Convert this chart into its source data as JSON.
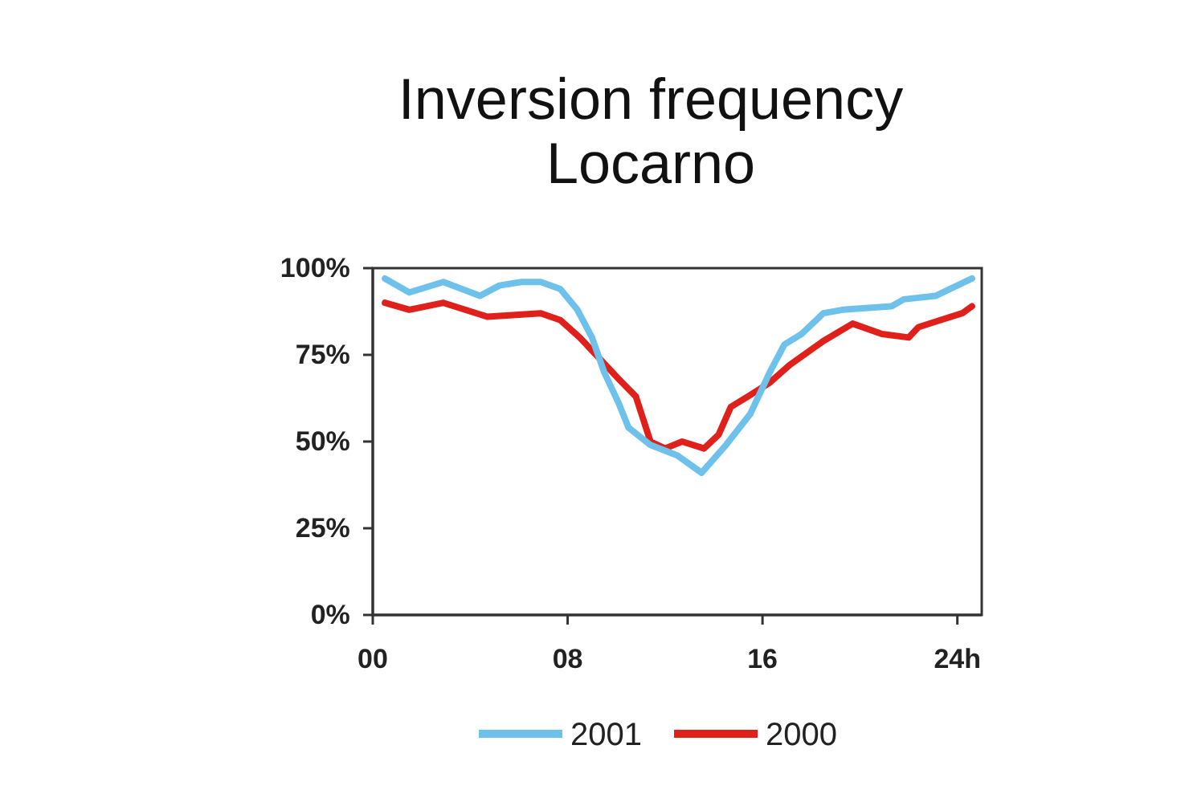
{
  "chart_data": {
    "type": "line",
    "title": "Inversion frequency\nLocarno",
    "xlim": [
      0,
      25
    ],
    "xticks": [
      {
        "value": 0,
        "label": "00"
      },
      {
        "value": 8,
        "label": "08"
      },
      {
        "value": 16,
        "label": "16"
      },
      {
        "value": 24,
        "label": "24h"
      }
    ],
    "ylim": [
      0,
      100
    ],
    "yticks": [
      {
        "value": 0,
        "label": "0%"
      },
      {
        "value": 25,
        "label": "25%"
      },
      {
        "value": 50,
        "label": "50%"
      },
      {
        "value": 75,
        "label": "75%"
      },
      {
        "value": 100,
        "label": "100%"
      }
    ],
    "grid": false,
    "legend": "bottom",
    "marker": "none",
    "line_style": "solid",
    "series": [
      {
        "name": "2001",
        "color": "#6ec1ea",
        "x": [
          0.5,
          1.5,
          2.9,
          4.4,
          5.2,
          6.1,
          6.9,
          7.7,
          8.4,
          9.0,
          9.5,
          10.1,
          10.5,
          11.4,
          12.5,
          13.5,
          14.5,
          15.5,
          16.3,
          16.9,
          17.6,
          18.5,
          19.3,
          21.3,
          21.8,
          23.1,
          24.6
        ],
        "values": [
          97,
          93,
          96,
          92,
          95,
          96,
          96,
          94,
          88,
          80,
          70,
          61,
          54,
          49,
          46,
          41,
          49,
          58,
          70,
          78,
          81,
          87,
          88,
          89,
          91,
          92,
          97
        ]
      },
      {
        "name": "2000",
        "color": "#e0201b",
        "x": [
          0.5,
          1.5,
          2.9,
          4.7,
          6.9,
          7.7,
          8.5,
          9.3,
          10.1,
          10.8,
          11.4,
          12.0,
          12.7,
          13.6,
          14.2,
          14.7,
          15.4,
          16.3,
          17.1,
          18.5,
          19.7,
          20.9,
          22.0,
          22.4,
          23.3,
          24.2,
          24.6
        ],
        "values": [
          90,
          88,
          90,
          86,
          87,
          85,
          80,
          74,
          68,
          63,
          50,
          48,
          50,
          48,
          52,
          60,
          63,
          67,
          72,
          79,
          84,
          81,
          80,
          83,
          85,
          87,
          89
        ]
      }
    ]
  }
}
